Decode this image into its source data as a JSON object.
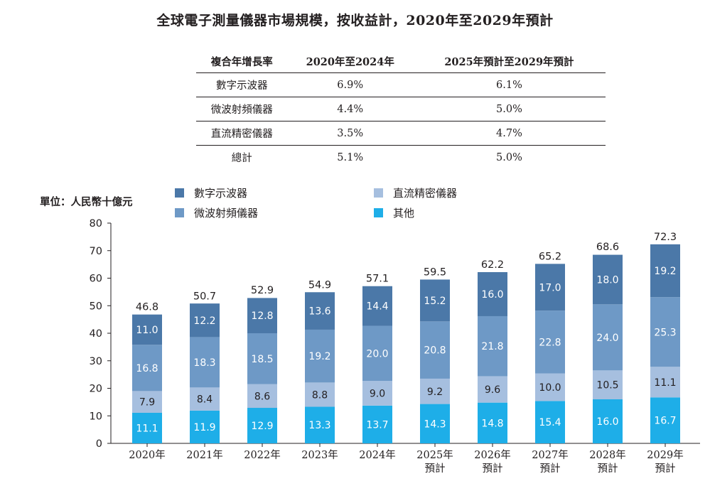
{
  "title": "全球電子測量儀器市場規模，按收益計，2020年至2029年預計",
  "cagr_table": {
    "headers": [
      "複合年增長率",
      "2020年至2024年",
      "2025年預計至2029年預計"
    ],
    "rows": [
      [
        "數字示波器",
        "6.9%",
        "6.1%"
      ],
      [
        "微波射頻儀器",
        "4.4%",
        "5.0%"
      ],
      [
        "直流精密儀器",
        "3.5%",
        "4.7%"
      ],
      [
        "總計",
        "5.1%",
        "5.0%"
      ]
    ]
  },
  "unit_label": "單位：人民幣十億元",
  "colors": {
    "oscilloscope": "#4b78a8",
    "microwave": "#6e99c6",
    "dc": "#a6bfdf",
    "other": "#1eaee8"
  },
  "legend": [
    {
      "label": "數字示波器",
      "color": "#4b78a8"
    },
    {
      "label": "微波射頻儀器",
      "color": "#6e99c6"
    },
    {
      "label": "直流精密儀器",
      "color": "#a6bfdf"
    },
    {
      "label": "其他",
      "color": "#1eaee8"
    }
  ],
  "chart_data": {
    "type": "bar",
    "stacked": true,
    "categories": [
      "2020年",
      "2021年",
      "2022年",
      "2023年",
      "2024年",
      "2025年\n預計",
      "2026年\n預計",
      "2027年\n預計",
      "2028年\n預計",
      "2029年\n預計"
    ],
    "series": [
      {
        "name": "其他",
        "values": [
          11.1,
          11.9,
          12.9,
          13.3,
          13.7,
          14.3,
          14.8,
          15.4,
          16.0,
          16.7
        ]
      },
      {
        "name": "直流精密儀器",
        "values": [
          7.9,
          8.4,
          8.6,
          8.8,
          9.0,
          9.2,
          9.6,
          10.0,
          10.5,
          11.1
        ]
      },
      {
        "name": "微波射頻儀器",
        "values": [
          16.8,
          18.3,
          18.5,
          19.2,
          20.0,
          20.8,
          21.8,
          22.8,
          24.0,
          25.3
        ]
      },
      {
        "name": "數字示波器",
        "values": [
          11.0,
          12.2,
          12.8,
          13.6,
          14.4,
          15.2,
          16.0,
          17.0,
          18.0,
          19.2
        ]
      }
    ],
    "totals": [
      46.8,
      50.7,
      52.9,
      54.9,
      57.1,
      59.5,
      62.2,
      65.2,
      68.6,
      72.3
    ],
    "ylim": [
      0,
      80
    ],
    "yticks": [
      0,
      10,
      20,
      30,
      40,
      50,
      60,
      70,
      80
    ],
    "grid": false,
    "legend_position": "top"
  }
}
